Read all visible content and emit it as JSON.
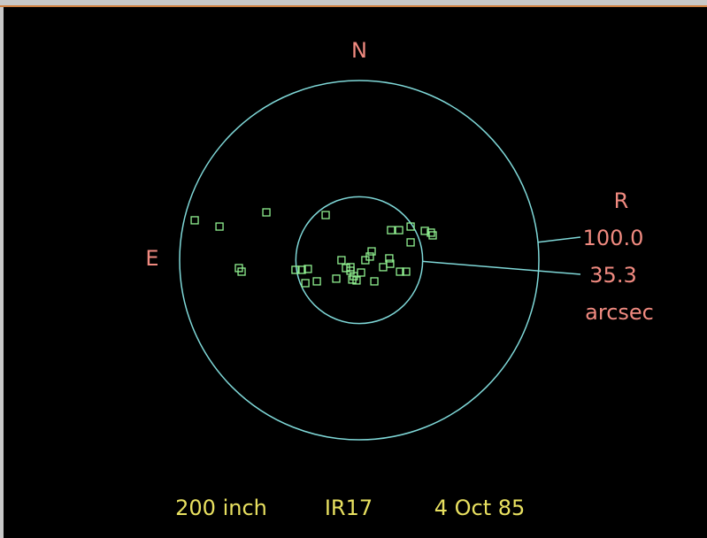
{
  "chart_data": {
    "type": "scatter",
    "north_label": "N",
    "east_label": "E",
    "ring_title": "R",
    "ring_unit": "arcsec",
    "rings": [
      {
        "value": 100,
        "label": "100.0"
      },
      35.3
    ],
    "ring_color": "#7fd8d8",
    "footer": [
      "200 inch",
      "IR17",
      "4 Oct 85"
    ],
    "xlim": [
      -100,
      100
    ],
    "ylim": [
      -100,
      100
    ],
    "color": "#90f090",
    "x": [
      -91.6,
      -77.8,
      -51.7,
      -18.7,
      -67.0,
      -65.5,
      -35.5,
      -32.0,
      -28.6,
      -30.0,
      -23.6,
      -12.8,
      -9.9,
      -7.4,
      -4.9,
      -3.0,
      -1.5,
      -3.9,
      1.0,
      3.4,
      5.9,
      6.9,
      8.4,
      13.3,
      16.7,
      17.2,
      22.7,
      26.1,
      17.7,
      22.2,
      28.6,
      28.6,
      36.5,
      39.9,
      40.9,
      -4.9
    ],
    "y": [
      22.2,
      18.7,
      26.6,
      25.1,
      -4.4,
      -6.4,
      -5.4,
      -5.4,
      -4.9,
      -12.8,
      -11.8,
      -10.3,
      0,
      -4.4,
      -5.9,
      -8.9,
      -11.3,
      -10.8,
      -6.9,
      0,
      2.0,
      4.9,
      -11.8,
      -3.9,
      1.0,
      -2.0,
      -6.4,
      -6.4,
      16.7,
      16.7,
      18.7,
      9.9,
      16.3,
      15.3,
      13.8,
      -3.9
    ]
  }
}
